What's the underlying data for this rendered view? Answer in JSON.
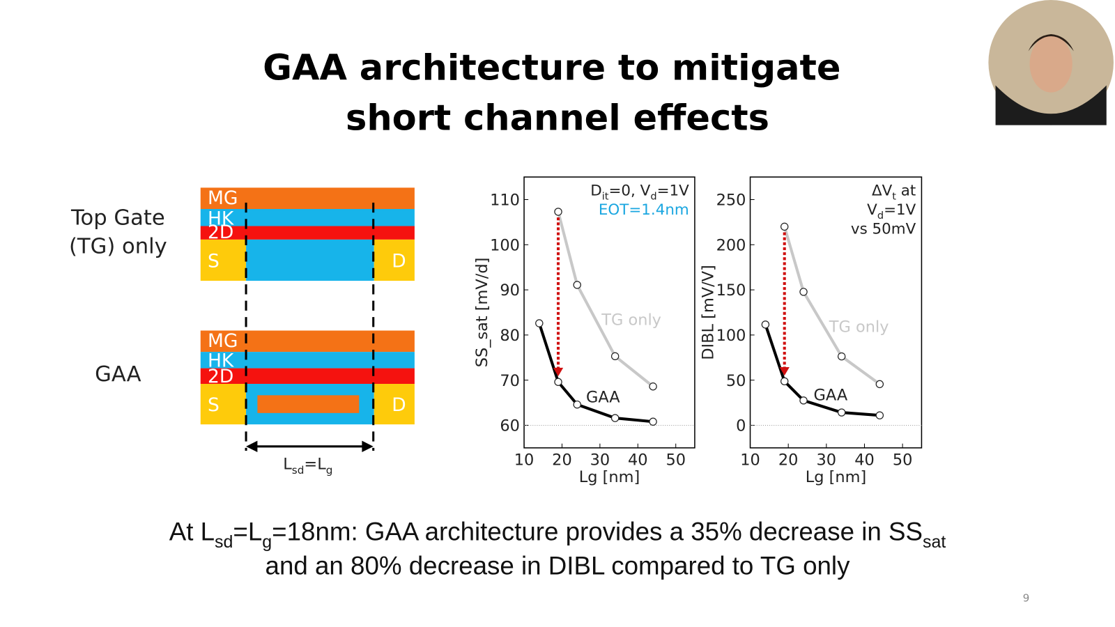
{
  "title": [
    "GAA architecture to mitigate",
    "short channel effects"
  ],
  "diagram": {
    "top_label": [
      "Top Gate",
      "(TG) only"
    ],
    "gaa_label": "GAA",
    "layers": [
      "MG",
      "HK",
      "2D"
    ],
    "source": "S",
    "drain": "D",
    "dimension": [
      "L",
      "sd",
      "=L",
      "g"
    ]
  },
  "chart_data": [
    {
      "type": "line",
      "ylabel": "SS_sat [mV/d]",
      "xlabel": "Lg [nm]",
      "xlim": [
        10,
        55
      ],
      "ylim": [
        55,
        115
      ],
      "xticks": [
        10,
        20,
        30,
        40,
        50
      ],
      "yticks": [
        60,
        70,
        80,
        90,
        100,
        110
      ],
      "reference_line": 60,
      "annotation": [
        {
          "parts": [
            "D",
            "it",
            "=0, V",
            "d",
            "=1V"
          ],
          "color": "#222222"
        },
        {
          "parts": [
            "EOT=1.4nm"
          ],
          "color": "#1aa6e0"
        }
      ],
      "series": [
        {
          "name": "TG only",
          "color": "#c8c8c8",
          "x": [
            19,
            24,
            34,
            44
          ],
          "values": [
            107.3,
            91.1,
            75.3,
            68.6
          ]
        },
        {
          "name": "GAA",
          "color": "#000000",
          "x": [
            14,
            19,
            24,
            34,
            44
          ],
          "values": [
            82.6,
            69.6,
            64.6,
            61.6,
            60.8
          ]
        }
      ]
    },
    {
      "type": "line",
      "ylabel": "DIBL [mV/V]",
      "xlabel": "Lg [nm]",
      "xlim": [
        10,
        55
      ],
      "ylim": [
        -25,
        275
      ],
      "xticks": [
        10,
        20,
        30,
        40,
        50
      ],
      "yticks": [
        0,
        50,
        100,
        150,
        200,
        250
      ],
      "reference_line": 0,
      "annotation": [
        {
          "parts": [
            "ΔV",
            "t",
            " at"
          ],
          "color": "#222222"
        },
        {
          "parts": [
            "V",
            "d",
            "=1V"
          ],
          "color": "#222222"
        },
        {
          "parts": [
            "vs 50mV"
          ],
          "color": "#222222"
        }
      ],
      "series": [
        {
          "name": "TG only",
          "color": "#c8c8c8",
          "x": [
            19,
            24,
            34,
            44
          ],
          "values": [
            220,
            147.8,
            76.3,
            45.6
          ]
        },
        {
          "name": "GAA",
          "color": "#000000",
          "x": [
            14,
            19,
            24,
            34,
            44
          ],
          "values": [
            111.6,
            48.7,
            27.5,
            14.2,
            11
          ]
        }
      ]
    }
  ],
  "conclusion": [
    [
      "At L",
      "sd",
      "=L",
      "g",
      "=18nm: GAA architecture provides a 35% decrease in SS",
      "sat"
    ],
    [
      "and an 80% decrease in DIBL compared to TG only"
    ]
  ],
  "page_number": "9"
}
